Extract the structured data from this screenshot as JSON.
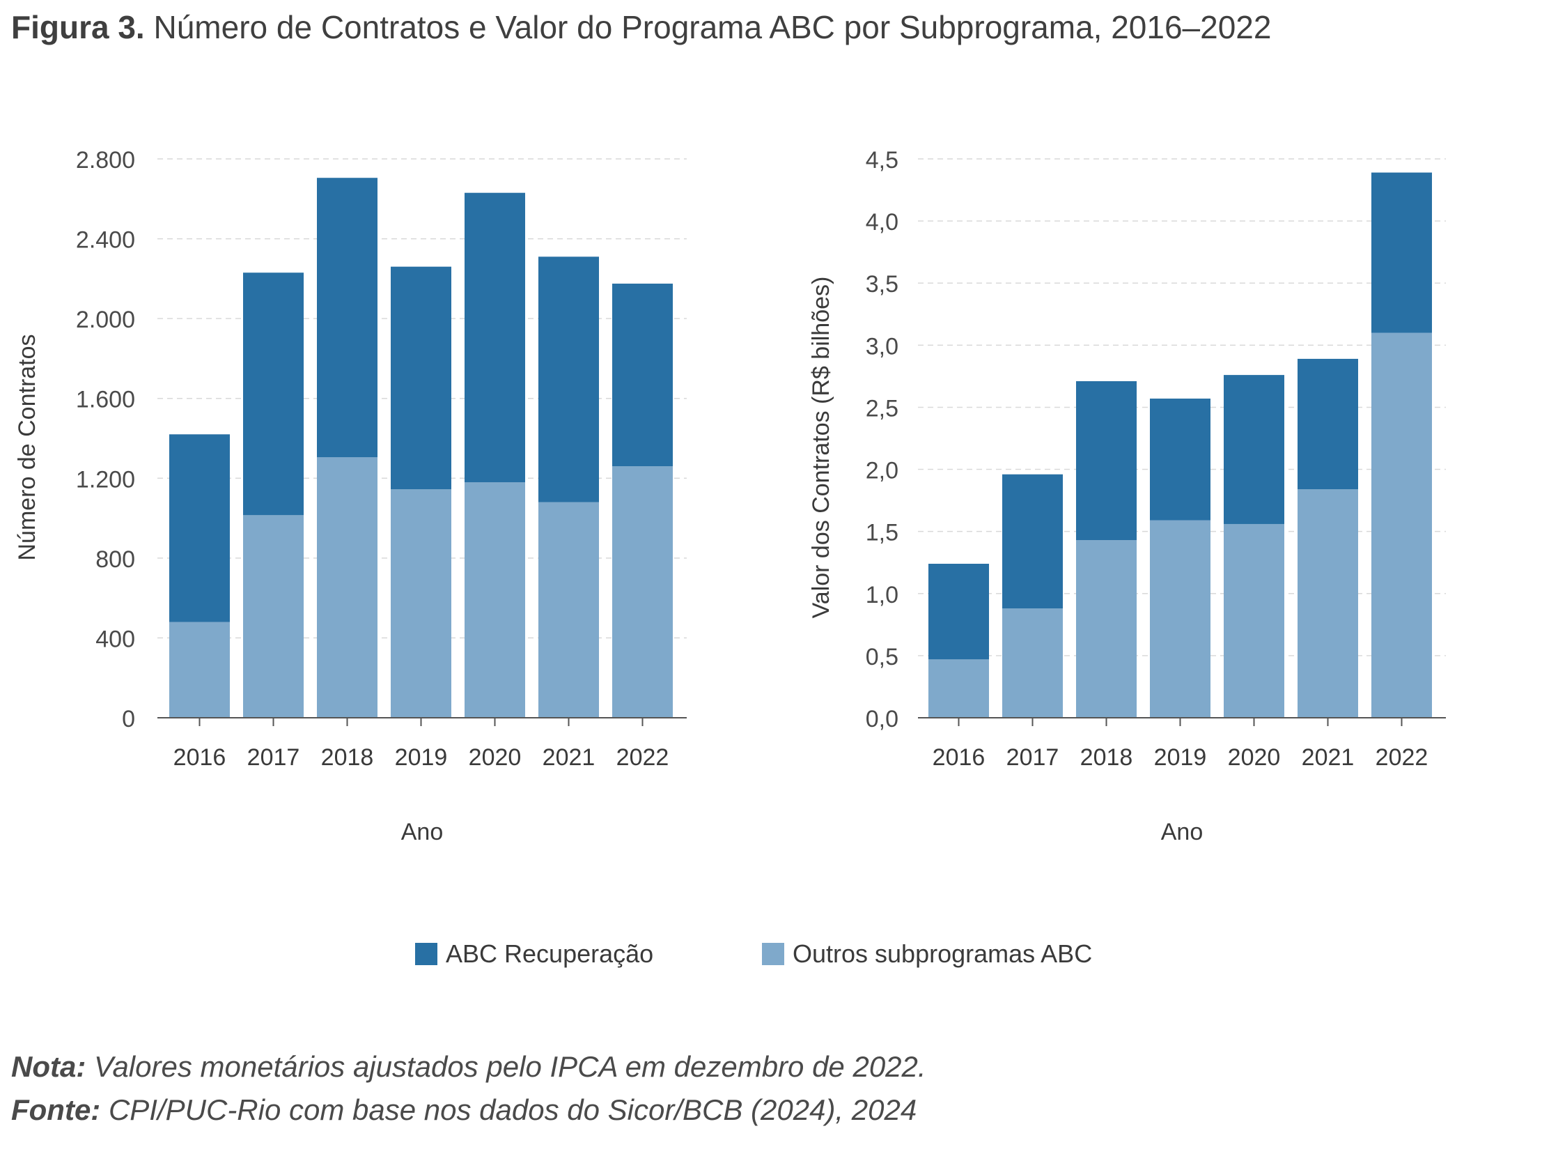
{
  "figure": {
    "label": "Figura 3.",
    "title": "Número de Contratos e Valor do Programa ABC por Subprograma, 2016–2022"
  },
  "colors": {
    "abc_recuperacao": "#2870a4",
    "outros": "#7fa9cb",
    "grid": "#d9d9d9",
    "axis": "#555555"
  },
  "legend": {
    "items": [
      {
        "label": "ABC Recuperação",
        "color": "#2870a4"
      },
      {
        "label": "Outros subprogramas ABC",
        "color": "#7fa9cb"
      }
    ]
  },
  "notes": {
    "nota_label": "Nota:",
    "nota_text": " Valores monetários ajustados pelo IPCA em dezembro de 2022.",
    "fonte_label": "Fonte:",
    "fonte_text": " CPI/PUC-Rio com base nos dados do Sicor/BCB (2024), 2024"
  },
  "chart_data": [
    {
      "type": "bar",
      "stacked": true,
      "categories": [
        "2016",
        "2017",
        "2018",
        "2019",
        "2020",
        "2021",
        "2022"
      ],
      "xlabel": "Ano",
      "ylabel": "Número de Contratos",
      "ylim": [
        0,
        2800
      ],
      "yticks": [
        0,
        400,
        800,
        1200,
        1600,
        2000,
        2400,
        2800
      ],
      "ytick_labels": [
        "0",
        "400",
        "800",
        "1.200",
        "1.600",
        "2.000",
        "2.400",
        "2.800"
      ],
      "grid": true,
      "series": [
        {
          "name": "Outros subprogramas ABC",
          "color": "#7fa9cb",
          "values": [
            480,
            1015,
            1305,
            1145,
            1180,
            1080,
            1260
          ]
        },
        {
          "name": "ABC Recuperação",
          "color": "#2870a4",
          "values": [
            940,
            1215,
            1400,
            1115,
            1450,
            1230,
            915
          ]
        }
      ]
    },
    {
      "type": "bar",
      "stacked": true,
      "categories": [
        "2016",
        "2017",
        "2018",
        "2019",
        "2020",
        "2021",
        "2022"
      ],
      "xlabel": "Ano",
      "ylabel": "Valor dos Contratos (R$ bilhões)",
      "ylim": [
        0,
        4.5
      ],
      "yticks": [
        0,
        0.5,
        1,
        1.5,
        2,
        2.5,
        3,
        3.5,
        4,
        4.5
      ],
      "ytick_labels": [
        "0,0",
        "0,5",
        "1,0",
        "1,5",
        "2,0",
        "2,5",
        "3,0",
        "3,5",
        "4,0",
        "4,5"
      ],
      "grid": true,
      "series": [
        {
          "name": "Outros subprogramas ABC",
          "color": "#7fa9cb",
          "values": [
            0.47,
            0.88,
            1.43,
            1.59,
            1.56,
            1.84,
            3.1
          ]
        },
        {
          "name": "ABC Recuperação",
          "color": "#2870a4",
          "values": [
            0.77,
            1.08,
            1.28,
            0.98,
            1.2,
            1.05,
            1.29
          ]
        }
      ]
    }
  ]
}
